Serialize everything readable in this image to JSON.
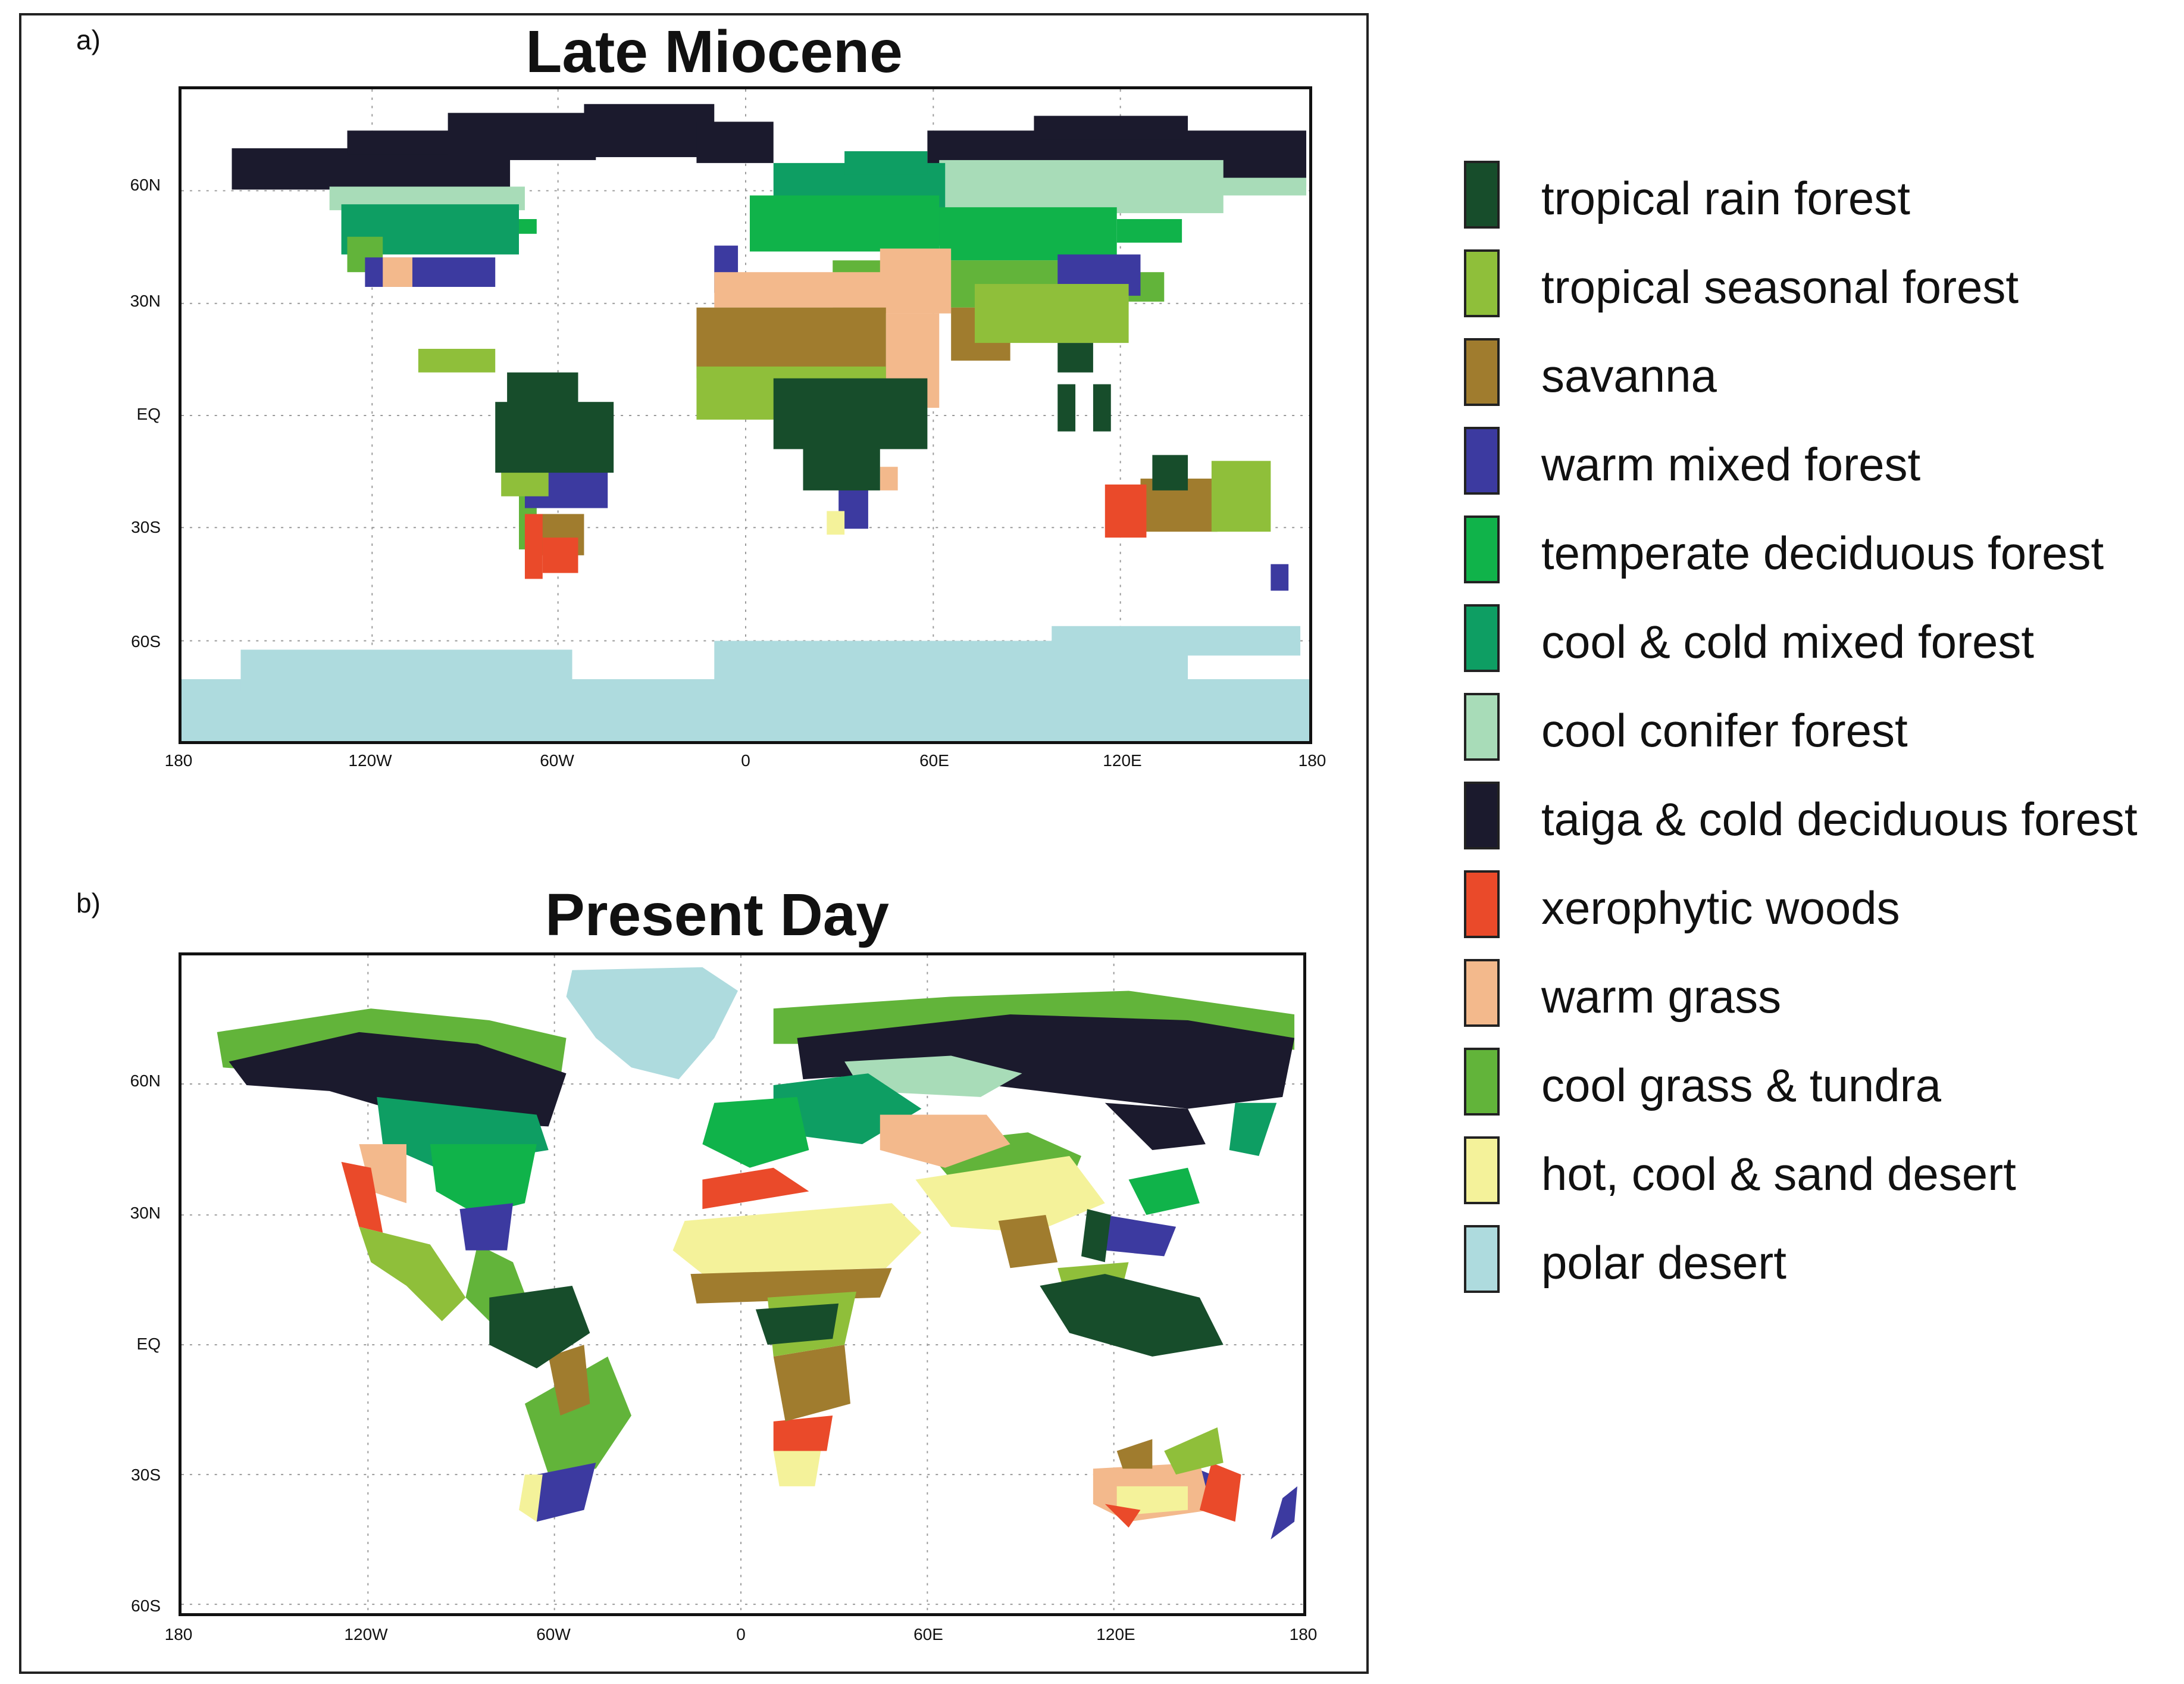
{
  "panels": [
    {
      "letter": "a)",
      "title": "Late Miocene",
      "y_ticks": [
        "60N",
        "30N",
        "EQ",
        "30S",
        "60S"
      ],
      "x_ticks": [
        "180",
        "120W",
        "60W",
        "0",
        "60E",
        "120E",
        "180"
      ]
    },
    {
      "letter": "b)",
      "title": "Present Day",
      "y_ticks": [
        "60N",
        "30N",
        "EQ",
        "30S",
        "60S"
      ],
      "x_ticks": [
        "180",
        "120W",
        "60W",
        "0",
        "60E",
        "120E",
        "180"
      ]
    }
  ],
  "legend": [
    {
      "label": "tropical rain forest",
      "color": "#174d2b"
    },
    {
      "label": "tropical seasonal forest",
      "color": "#8fbf3a"
    },
    {
      "label": "savanna",
      "color": "#a07c2e"
    },
    {
      "label": "warm mixed forest",
      "color": "#3c3aa0"
    },
    {
      "label": "temperate deciduous forest",
      "color": "#10b34a"
    },
    {
      "label": "cool & cold mixed forest",
      "color": "#0e9e63"
    },
    {
      "label": "cool conifer forest",
      "color": "#a8dcb8"
    },
    {
      "label": "taiga & cold deciduous forest",
      "color": "#1b1a2d"
    },
    {
      "label": "xerophytic woods",
      "color": "#ea4a2a"
    },
    {
      "label": "warm grass",
      "color": "#f3b98c"
    },
    {
      "label": "cool grass & tundra",
      "color": "#62b43a"
    },
    {
      "label": "hot, cool & sand desert",
      "color": "#f4f29a"
    },
    {
      "label": "polar desert",
      "color": "#aedbde"
    }
  ]
}
